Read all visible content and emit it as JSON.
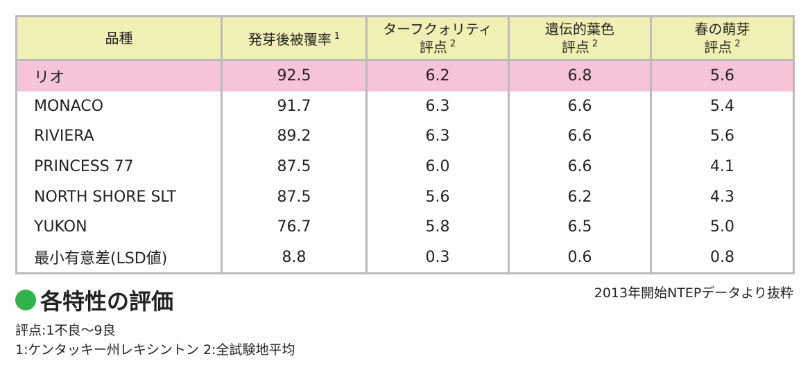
{
  "table": {
    "header": [
      {
        "lines": [
          "品種"
        ]
      },
      {
        "lines": [
          "発芽後被覆率"
        ],
        "note": "1"
      },
      {
        "lines": [
          "ターフクォリティ",
          "評点"
        ],
        "note": "2"
      },
      {
        "lines": [
          "遺伝的葉色",
          "評点"
        ],
        "note": "2"
      },
      {
        "lines": [
          "春の萌芽",
          "評点"
        ],
        "note": "2"
      }
    ],
    "rows": [
      [
        "リオ",
        "92.5",
        "6.2",
        "6.8",
        "5.6"
      ],
      [
        "MONACO",
        "91.7",
        "6.3",
        "6.6",
        "5.4"
      ],
      [
        "RIVIERA",
        "89.2",
        "6.3",
        "6.6",
        "5.6"
      ],
      [
        "PRINCESS 77",
        "87.5",
        "6.0",
        "6.6",
        "4.1"
      ],
      [
        "NORTH SHORE SLT",
        "87.5",
        "5.6",
        "6.2",
        "4.3"
      ],
      [
        "YUKON",
        "76.7",
        "5.8",
        "6.5",
        "5.0"
      ],
      [
        "最小有意差(LSD値)",
        "8.8",
        "0.3",
        "0.6",
        "0.8"
      ]
    ]
  },
  "title": "各特性の評価",
  "source": "2013年開始NTEPデータより抜粋",
  "notes": [
    "評点:1不良〜9良",
    "1:ケンタッキー州レキシントン 2:全試験地平均"
  ]
}
